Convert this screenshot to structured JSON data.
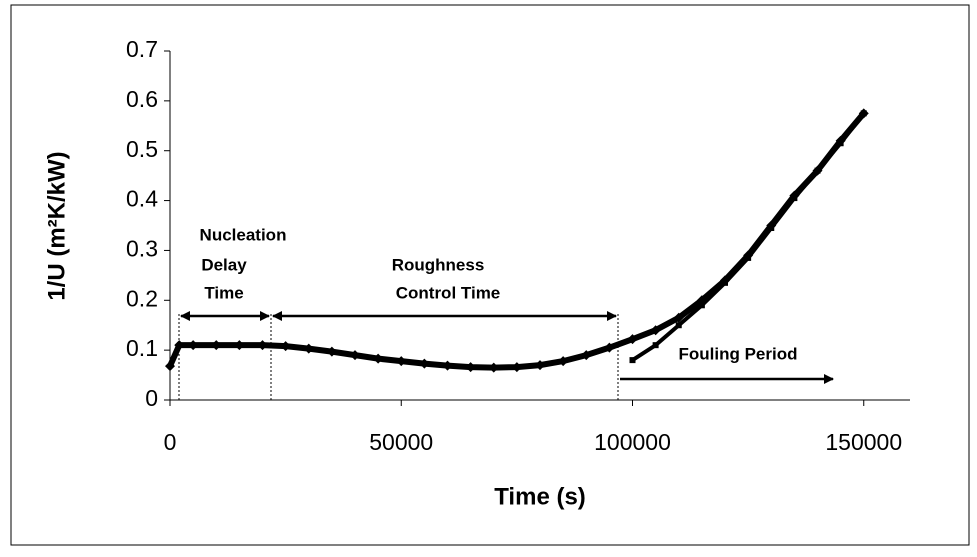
{
  "chart_data": {
    "type": "scatter",
    "x_label": "Time (s)",
    "y_label": "1/U (m²K/kW)",
    "annotations": {
      "nucleation": [
        "Nucleation",
        "Delay",
        "Time"
      ],
      "roughness": [
        "Roughness",
        "Control Time"
      ],
      "fouling": "Fouling Period"
    },
    "xlim": [
      0,
      160000
    ],
    "xticks": [
      0,
      50000,
      100000,
      150000
    ],
    "ylim": [
      0,
      0.7
    ],
    "yticks": [
      0,
      0.1,
      0.2,
      0.3,
      0.4,
      0.5,
      0.6,
      0.7
    ],
    "series": [
      {
        "color": "#000000",
        "marker": "diamond",
        "x": [
          0,
          2000,
          5000,
          10000,
          15000,
          20000,
          25000,
          30000,
          35000,
          40000,
          45000,
          50000,
          55000,
          60000,
          65000,
          70000,
          75000,
          80000,
          85000,
          90000,
          95000,
          100000,
          105000,
          110000,
          115000,
          120000,
          125000,
          130000,
          135000,
          140000,
          145000,
          150000
        ],
        "values": [
          0.068,
          0.11,
          0.11,
          0.11,
          0.11,
          0.11,
          0.108,
          0.103,
          0.097,
          0.09,
          0.083,
          0.078,
          0.073,
          0.069,
          0.066,
          0.065,
          0.066,
          0.07,
          0.078,
          0.09,
          0.105,
          0.122,
          0.14,
          0.165,
          0.2,
          0.24,
          0.29,
          0.35,
          0.41,
          0.46,
          0.52,
          0.575
        ]
      },
      {
        "color": "#000000",
        "marker": "square",
        "x": [
          100000,
          105000,
          110000,
          115000,
          120000,
          125000,
          130000,
          135000,
          140000,
          145000,
          150000
        ],
        "values": [
          0.08,
          0.11,
          0.15,
          0.19,
          0.235,
          0.285,
          0.345,
          0.405,
          0.46,
          0.515,
          0.575
        ]
      }
    ]
  }
}
